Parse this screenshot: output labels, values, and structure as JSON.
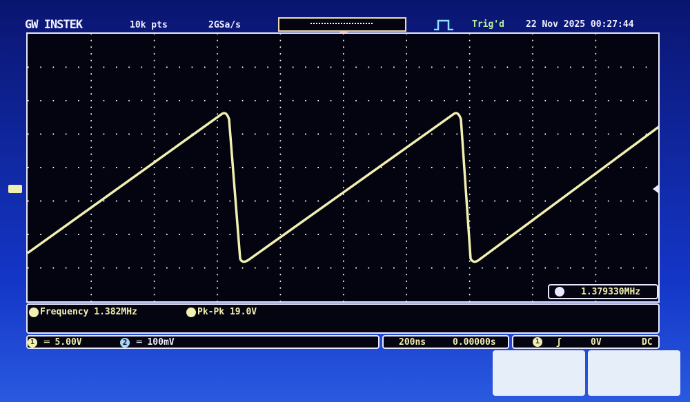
{
  "header": {
    "brand": "GW INSTEK",
    "memory": "10k pts",
    "sample_rate": "2GSa/s",
    "trigger_status": "Trig'd",
    "datetime": "22 Nov 2025 00:27:44"
  },
  "measurements": {
    "ch1_frequency": "Frequency 1.382MHz",
    "ch1_pkpk": "Pk-Pk 19.0V",
    "counter": "1.379330MHz"
  },
  "channels": {
    "ch1_label": "1",
    "ch1_scale": "5.00V",
    "ch2_label": "2",
    "ch2_scale": "100mV"
  },
  "timebase": {
    "scale": "200ns",
    "position": "0.00000s"
  },
  "trigger": {
    "source": "1",
    "slope": "rising",
    "level": "0V",
    "coupling": "DC"
  },
  "colors": {
    "ch1": "#f2f0b0",
    "screen_bg": "#1436c8",
    "grid_bg": "#040410"
  },
  "waveform": {
    "type": "sawtooth"
  }
}
